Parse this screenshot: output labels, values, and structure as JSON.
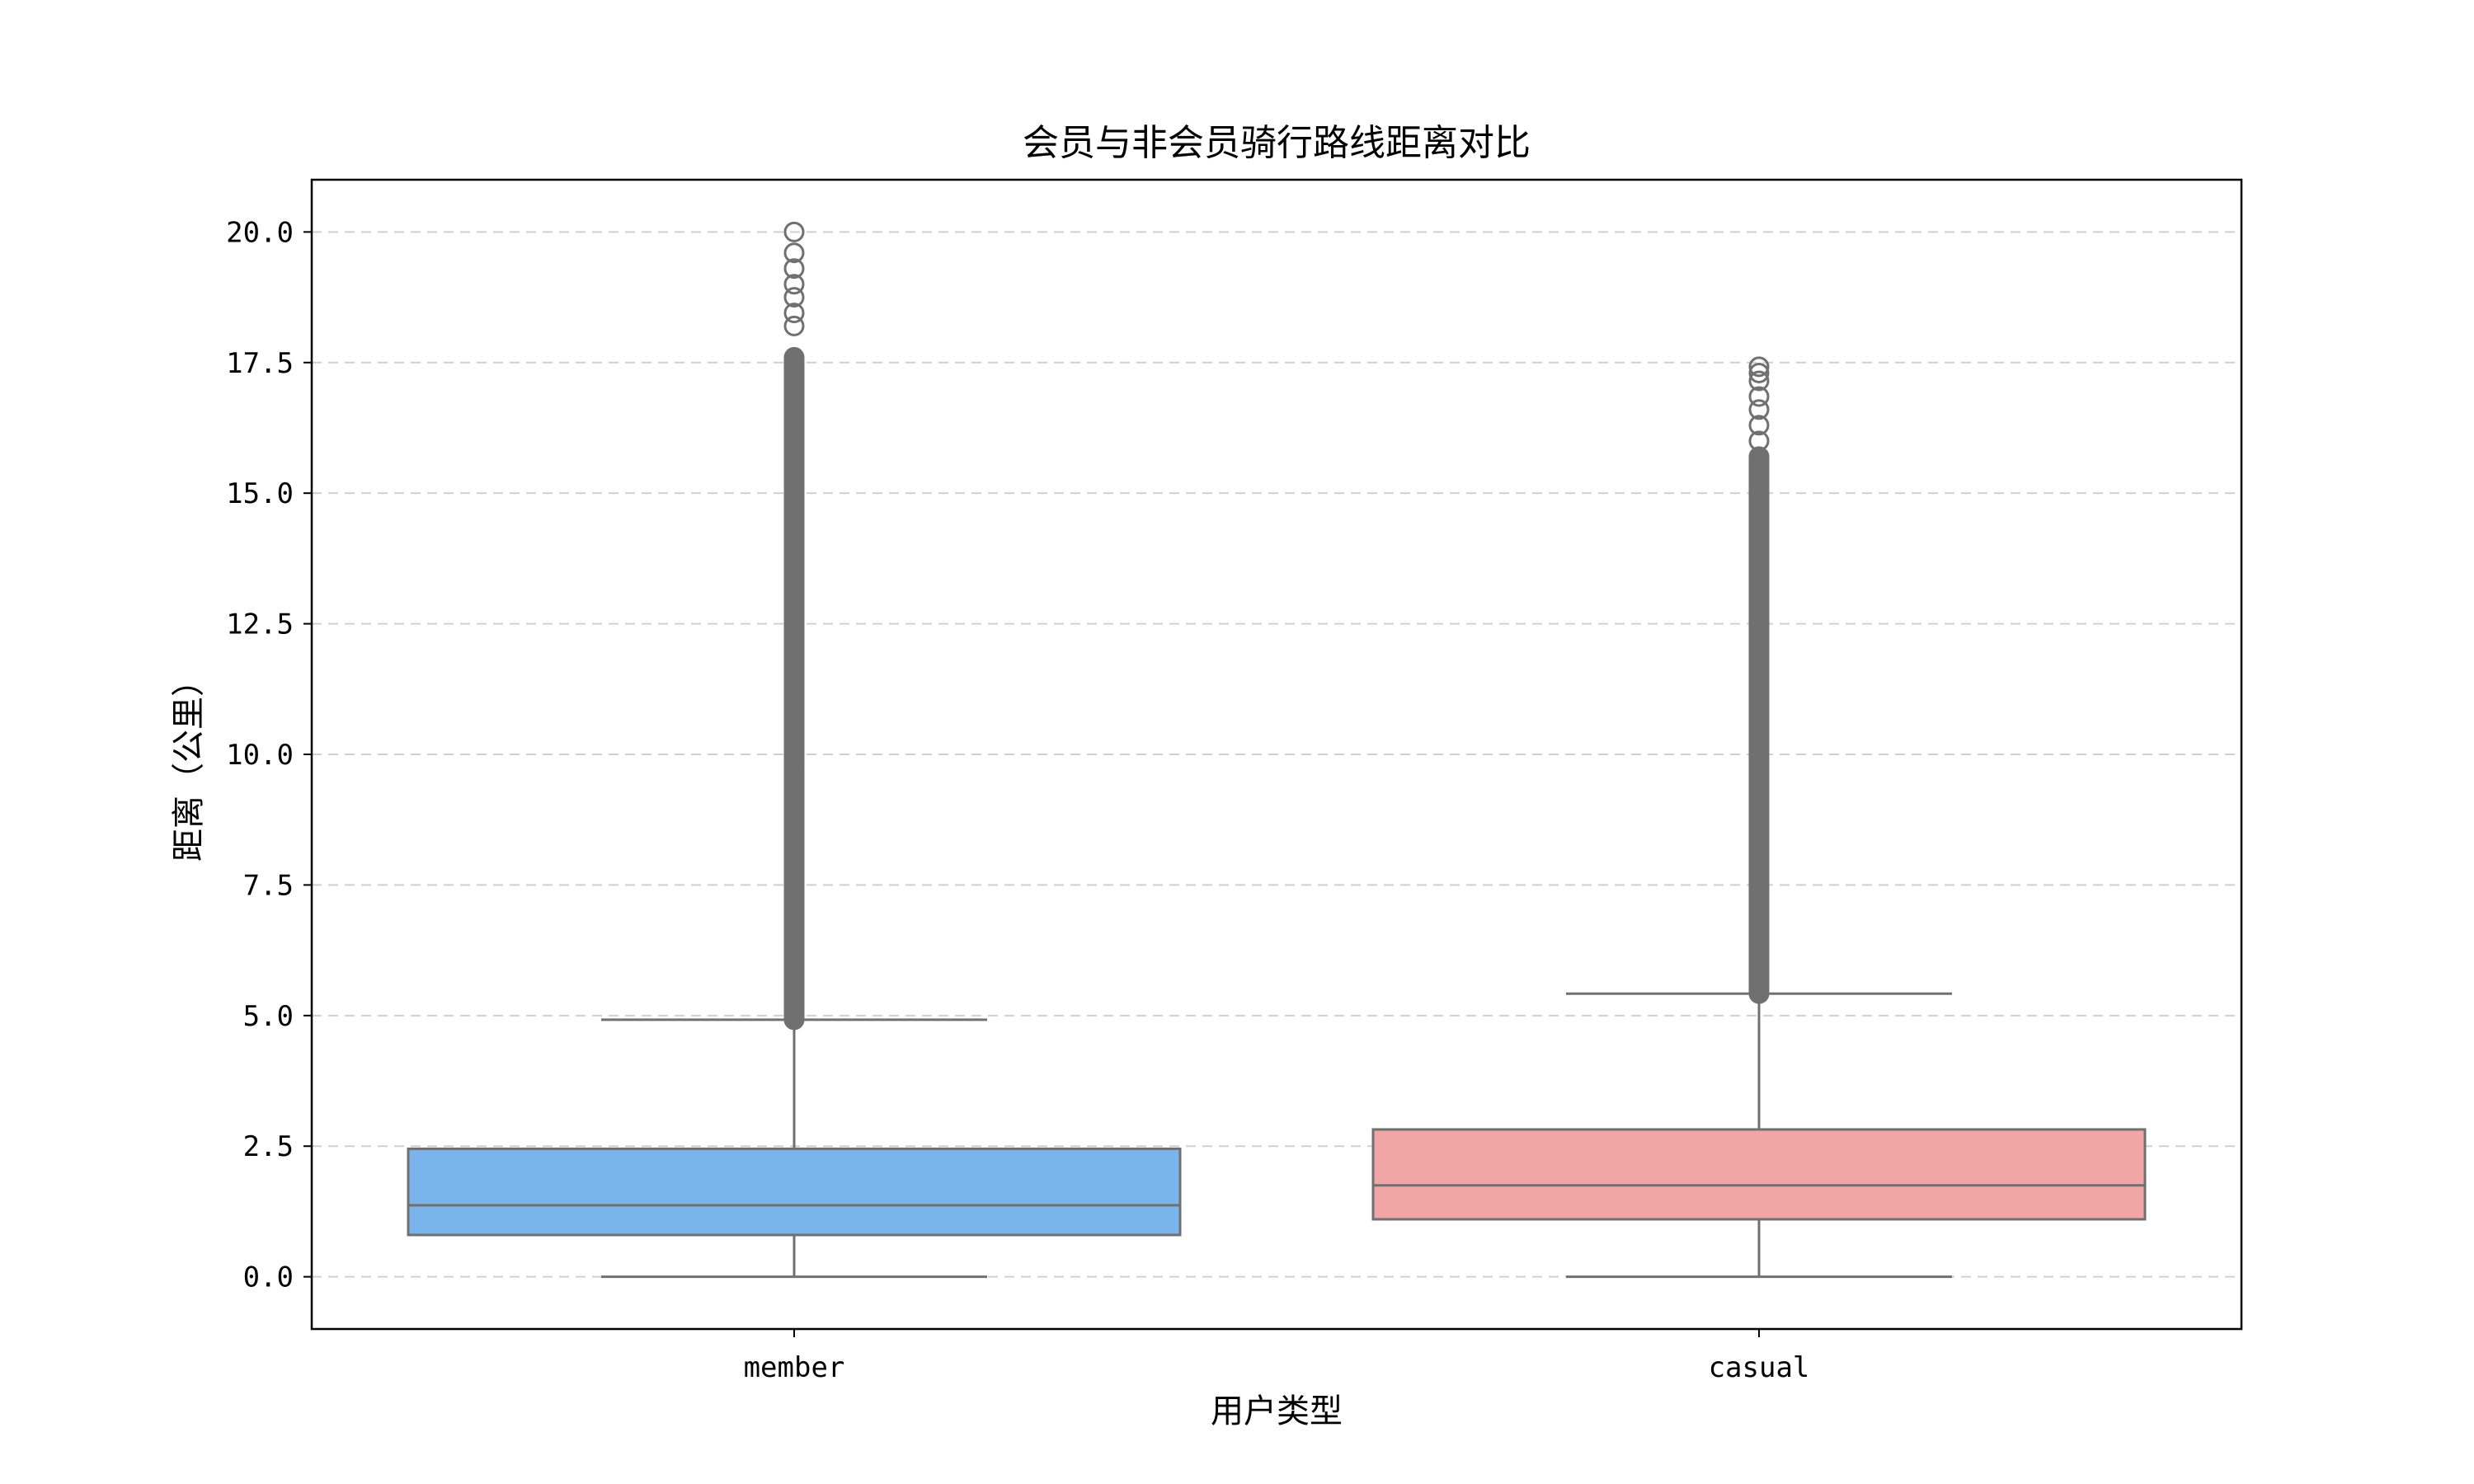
{
  "colors": {
    "member_box": "#7ab4ec",
    "casual_box": "#f2a5a5",
    "line": "#707070",
    "grid": "#d0d0d0"
  },
  "chart_data": {
    "type": "box",
    "title": "会员与非会员骑行路线距离对比",
    "xlabel": "用户类型",
    "ylabel": "距离（公里）",
    "ylim": [
      -1.0,
      21.0
    ],
    "yticks": [
      0.0,
      2.5,
      5.0,
      7.5,
      10.0,
      12.5,
      15.0,
      17.5,
      20.0
    ],
    "ytick_labels": [
      "0.0",
      "2.5",
      "5.0",
      "7.5",
      "10.0",
      "12.5",
      "15.0",
      "17.5",
      "20.0"
    ],
    "grid": "horizontal dashed",
    "categories": [
      "member",
      "casual"
    ],
    "series": [
      {
        "category": "member",
        "color": "#7ab4ec",
        "whislo": 0.0,
        "q1": 0.8,
        "median": 1.37,
        "q3": 2.45,
        "whishi": 4.92,
        "outliers_range": [
          4.92,
          17.6
        ],
        "outliers_extra": [
          18.2,
          18.45,
          18.75,
          19.0,
          19.3,
          19.6,
          20.0
        ]
      },
      {
        "category": "casual",
        "color": "#f2a5a5",
        "whislo": 0.0,
        "q1": 1.1,
        "median": 1.75,
        "q3": 2.82,
        "whishi": 5.42,
        "outliers_range": [
          5.42,
          15.7
        ],
        "outliers_extra": [
          16.0,
          16.3,
          16.6,
          16.85,
          17.15,
          17.3,
          17.42
        ]
      }
    ]
  }
}
